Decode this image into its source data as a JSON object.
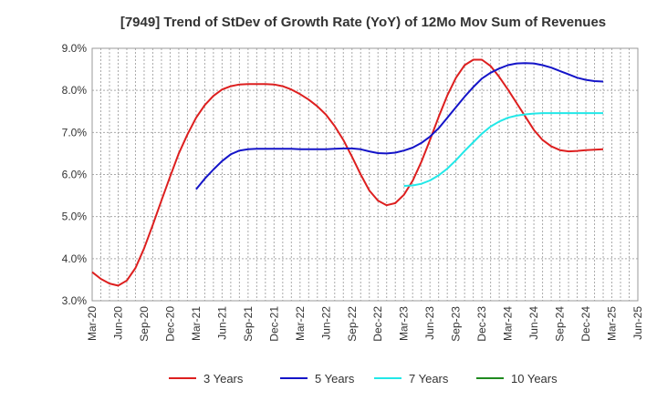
{
  "chart_data": {
    "type": "line",
    "title": "[7949]  Trend of StDev of Growth Rate (YoY) of 12Mo Mov Sum of Revenues",
    "xlabel": "",
    "ylabel": "",
    "ylim": [
      3.0,
      9.0
    ],
    "yticks": [
      3.0,
      4.0,
      5.0,
      6.0,
      7.0,
      8.0,
      9.0
    ],
    "ytick_labels": [
      "3.0%",
      "4.0%",
      "5.0%",
      "6.0%",
      "7.0%",
      "8.0%",
      "9.0%"
    ],
    "x_ticks": [
      "Mar-20",
      "Jun-20",
      "Sep-20",
      "Dec-20",
      "Mar-21",
      "Jun-21",
      "Sep-21",
      "Dec-21",
      "Mar-22",
      "Jun-22",
      "Sep-22",
      "Dec-22",
      "Mar-23",
      "Jun-23",
      "Sep-23",
      "Dec-23",
      "Mar-24",
      "Jun-24",
      "Sep-24",
      "Dec-24",
      "Mar-25",
      "Jun-25"
    ],
    "grid": true,
    "legend_position": "bottom",
    "series": [
      {
        "name": "3 Years",
        "color": "#dd1f1f",
        "start_index": 0,
        "values": [
          3.68,
          3.52,
          3.41,
          3.36,
          3.48,
          3.78,
          4.25,
          4.8,
          5.38,
          5.95,
          6.5,
          6.95,
          7.35,
          7.65,
          7.87,
          8.02,
          8.1,
          8.14,
          8.15,
          8.15,
          8.15,
          8.14,
          8.1,
          8.02,
          7.91,
          7.78,
          7.62,
          7.42,
          7.15,
          6.82,
          6.42,
          6.0,
          5.62,
          5.38,
          5.27,
          5.32,
          5.52,
          5.85,
          6.3,
          6.82,
          7.37,
          7.88,
          8.3,
          8.6,
          8.73,
          8.73,
          8.58,
          8.32,
          8.02,
          7.7,
          7.38,
          7.06,
          6.82,
          6.67,
          6.58,
          6.55,
          6.56,
          6.58,
          6.59,
          6.6
        ]
      },
      {
        "name": "5 Years",
        "color": "#1414c8",
        "start_index": 12,
        "values": [
          5.65,
          5.9,
          6.12,
          6.32,
          6.48,
          6.57,
          6.6,
          6.61,
          6.61,
          6.61,
          6.61,
          6.61,
          6.6,
          6.6,
          6.6,
          6.6,
          6.61,
          6.62,
          6.62,
          6.6,
          6.55,
          6.51,
          6.5,
          6.52,
          6.57,
          6.64,
          6.75,
          6.9,
          7.1,
          7.35,
          7.6,
          7.85,
          8.08,
          8.28,
          8.42,
          8.52,
          8.6,
          8.64,
          8.65,
          8.64,
          8.6,
          8.54,
          8.46,
          8.38,
          8.3,
          8.25,
          8.22,
          8.21
        ]
      },
      {
        "name": "7 Years",
        "color": "#22e8e8",
        "start_index": 36,
        "values": [
          5.73,
          5.74,
          5.78,
          5.86,
          5.98,
          6.14,
          6.34,
          6.56,
          6.77,
          6.97,
          7.14,
          7.26,
          7.35,
          7.4,
          7.43,
          7.45,
          7.46,
          7.46,
          7.46,
          7.46,
          7.46,
          7.46,
          7.46,
          7.46
        ]
      },
      {
        "name": "10 Years",
        "color": "#1f8a1f",
        "start_index": 0,
        "values": []
      }
    ]
  }
}
